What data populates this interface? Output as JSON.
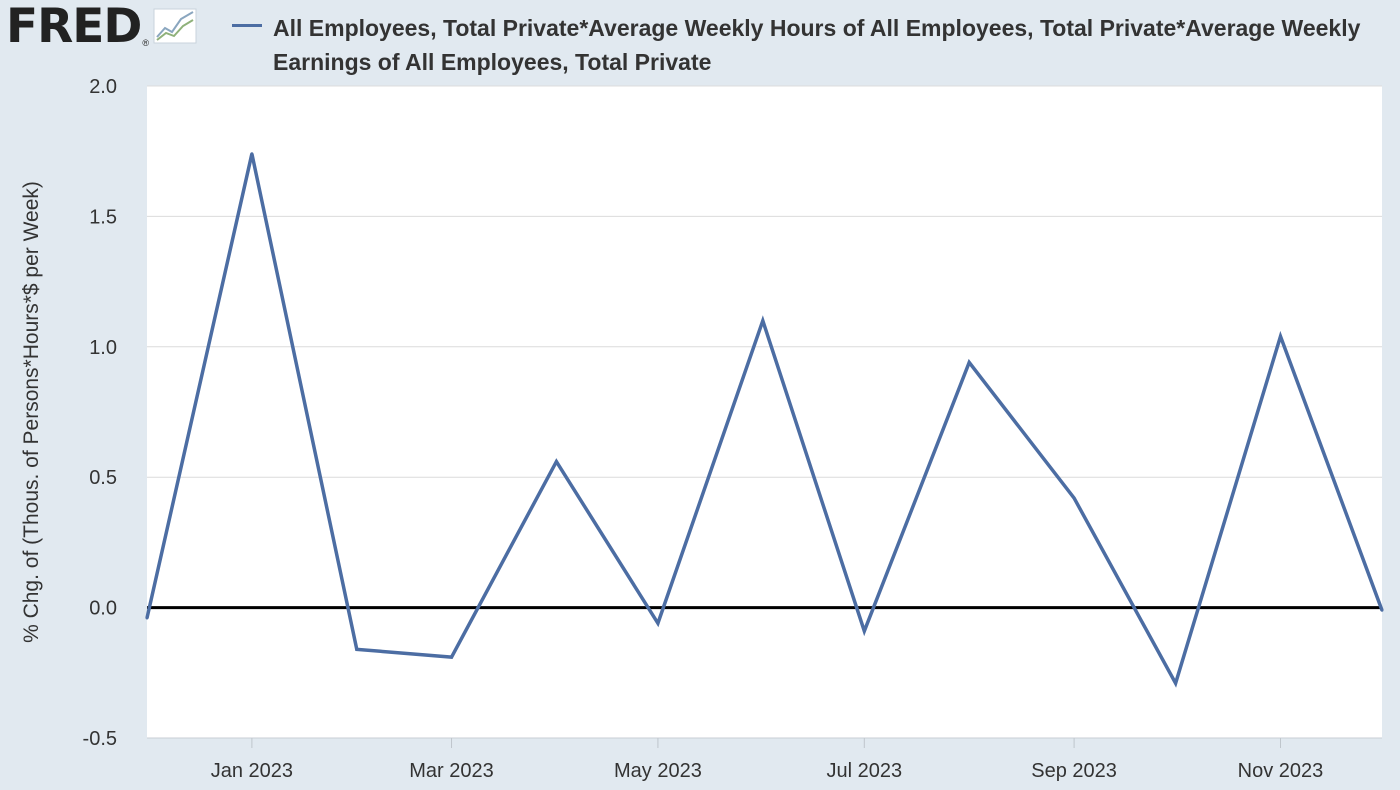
{
  "logo": {
    "text": "FRED",
    "registered": "®",
    "icon": "line-graph-icon"
  },
  "colors": {
    "background": "#e1e9f0",
    "plot_background": "#ffffff",
    "series": "#4c6da3",
    "zero_line": "#000000",
    "grid": "#dcdcdc",
    "text": "#333333"
  },
  "chart_data": {
    "type": "line",
    "title": "",
    "xlabel": "",
    "ylabel": "% Chg. of (Thous. of Persons*Hours*$ per Week)",
    "ylim": [
      -0.5,
      2.0
    ],
    "yticks": [
      -0.5,
      0.0,
      0.5,
      1.0,
      1.5,
      2.0
    ],
    "ytick_labels": [
      "-0.5",
      "0.0",
      "0.5",
      "1.0",
      "1.5",
      "2.0"
    ],
    "xlim": [
      "2022-12-01",
      "2023-12-01"
    ],
    "xticks": [
      "2023-01-01",
      "2023-03-01",
      "2023-05-01",
      "2023-07-01",
      "2023-09-01",
      "2023-11-01"
    ],
    "xtick_labels": [
      "Jan 2023",
      "Mar 2023",
      "May 2023",
      "Jul 2023",
      "Sep 2023",
      "Nov 2023"
    ],
    "grid": "horizontal",
    "legend_position": "top",
    "zero_line": true,
    "series": [
      {
        "name": "All Employees, Total Private*Average Weekly Hours of All Employees, Total Private*Average Weekly Earnings of All Employees, Total Private",
        "x": [
          "2022-12-01",
          "2023-01-01",
          "2023-02-01",
          "2023-03-01",
          "2023-04-01",
          "2023-05-01",
          "2023-06-01",
          "2023-07-01",
          "2023-08-01",
          "2023-09-01",
          "2023-10-01",
          "2023-11-01",
          "2023-12-01"
        ],
        "values": [
          -0.04,
          1.74,
          -0.16,
          -0.19,
          0.56,
          -0.06,
          1.1,
          -0.09,
          0.94,
          0.42,
          -0.29,
          1.04,
          -0.01
        ]
      }
    ]
  }
}
